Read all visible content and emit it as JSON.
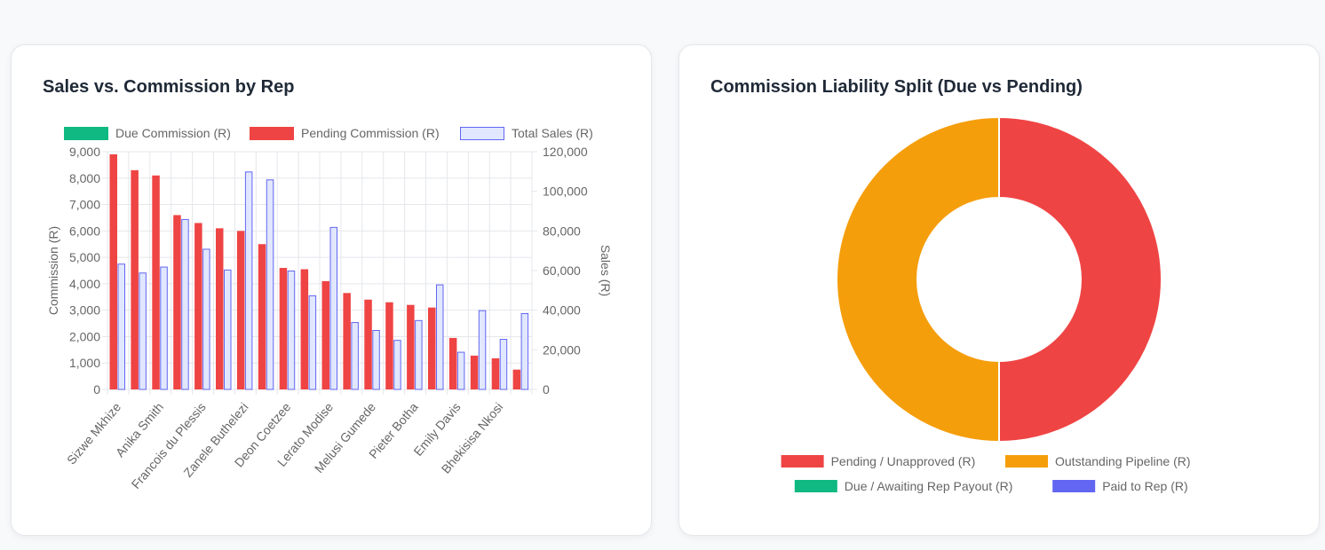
{
  "left_card": {
    "title": "Sales vs. Commission by Rep"
  },
  "right_card": {
    "title": "Commission Liability Split (Due vs Pending)"
  },
  "colors": {
    "due": "#10b981",
    "pending": "#ef4444",
    "sales_fill": "#e0e7ff",
    "sales_border": "#6366f1",
    "outstanding": "#f59e0b",
    "paid": "#6366f1"
  },
  "chart_data": [
    {
      "type": "bar",
      "title": "Sales vs. Commission by Rep",
      "ylabel": "Commission (R)",
      "y2label": "Sales (R)",
      "ylim": [
        0,
        9000
      ],
      "y2lim": [
        0,
        120000
      ],
      "yticks": [
        "0",
        "1,000",
        "2,000",
        "3,000",
        "4,000",
        "5,000",
        "6,000",
        "7,000",
        "8,000",
        "9,000"
      ],
      "y2ticks": [
        "0",
        "20,000",
        "40,000",
        "60,000",
        "80,000",
        "100,000",
        "120,000"
      ],
      "legend_position": "top",
      "grid": true,
      "categories": [
        "Sizwe Mkhize",
        "",
        "Anika Smith",
        "",
        "Francois du Plessis",
        "",
        "Zanele Buthelezi",
        "",
        "Deon Coetzee",
        "",
        "Lerato Modise",
        "",
        "Melusi Gumede",
        "",
        "Pieter Botha",
        "",
        "Emily Davis",
        "",
        "Bhekisisa Nkosi",
        ""
      ],
      "series": [
        {
          "name": "Due Commission (R)",
          "axis": "left",
          "values": [
            0,
            0,
            0,
            0,
            0,
            0,
            0,
            0,
            0,
            0,
            0,
            0,
            0,
            0,
            0,
            0,
            0,
            0,
            0,
            0
          ]
        },
        {
          "name": "Pending Commission (R)",
          "axis": "left",
          "values": [
            8900,
            8300,
            8100,
            6600,
            6300,
            6100,
            6000,
            5500,
            4600,
            4550,
            4100,
            3650,
            3400,
            3300,
            3200,
            3100,
            1950,
            1280,
            1180,
            750
          ]
        },
        {
          "name": "Total Sales (R)",
          "axis": "right",
          "values": [
            63500,
            59000,
            62000,
            86000,
            71000,
            60500,
            110000,
            106000,
            60000,
            47500,
            82000,
            34000,
            30000,
            25000,
            35000,
            53000,
            19000,
            40000,
            25500,
            38500
          ]
        }
      ]
    },
    {
      "type": "pie",
      "title": "Commission Liability Split (Due vs Pending)",
      "labels": [
        "Pending / Unapproved (R)",
        "Outstanding Pipeline (R)",
        "Due / Awaiting Rep Payout (R)",
        "Paid to Rep (R)"
      ],
      "values": [
        50,
        50,
        0,
        0
      ],
      "donut": true,
      "legend_position": "bottom"
    }
  ]
}
